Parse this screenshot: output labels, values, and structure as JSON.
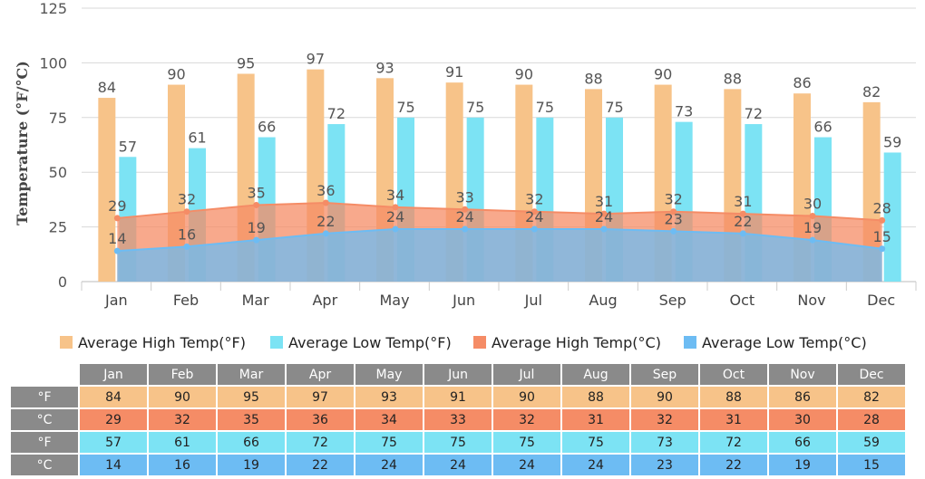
{
  "chart_data": {
    "type": "bar",
    "ylabel": "Temperature (°F/°C)",
    "ylim": [
      0,
      125
    ],
    "yticks": [
      0,
      25,
      50,
      75,
      100,
      125
    ],
    "grid": true,
    "legend_position": "bottom",
    "categories": [
      "Jan",
      "Feb",
      "Mar",
      "Apr",
      "May",
      "Jun",
      "Jul",
      "Aug",
      "Sep",
      "Oct",
      "Nov",
      "Dec"
    ],
    "series": [
      {
        "name": "Average High Temp(°F)",
        "kind": "bar",
        "color": "#f7c389",
        "values": [
          84,
          90,
          95,
          97,
          93,
          91,
          90,
          88,
          90,
          88,
          86,
          82
        ]
      },
      {
        "name": "Average Low Temp(°F)",
        "kind": "bar",
        "color": "#7ce3f4",
        "values": [
          57,
          61,
          66,
          72,
          75,
          75,
          75,
          75,
          73,
          72,
          66,
          59
        ]
      },
      {
        "name": "Average High Temp(°C)",
        "kind": "area",
        "color": "#f58c66",
        "values": [
          29,
          32,
          35,
          36,
          34,
          33,
          32,
          31,
          32,
          31,
          30,
          28
        ]
      },
      {
        "name": "Average Low Temp(°C)",
        "kind": "area",
        "color": "#6dbcf3",
        "values": [
          14,
          16,
          19,
          22,
          24,
          24,
          24,
          24,
          23,
          22,
          19,
          15
        ]
      }
    ]
  },
  "table": {
    "months": [
      "Jan",
      "Feb",
      "Mar",
      "Apr",
      "May",
      "Jun",
      "Jul",
      "Aug",
      "Sep",
      "Oct",
      "Nov",
      "Dec"
    ],
    "rows": [
      {
        "unit": "°F",
        "values": [
          "84",
          "90",
          "95",
          "97",
          "93",
          "91",
          "90",
          "88",
          "90",
          "88",
          "86",
          "82"
        ]
      },
      {
        "unit": "°C",
        "values": [
          "29",
          "32",
          "35",
          "36",
          "34",
          "33",
          "32",
          "31",
          "32",
          "31",
          "30",
          "28"
        ]
      },
      {
        "unit": "°F",
        "values": [
          "57",
          "61",
          "66",
          "72",
          "75",
          "75",
          "75",
          "75",
          "73",
          "72",
          "66",
          "59"
        ]
      },
      {
        "unit": "°C",
        "values": [
          "14",
          "16",
          "19",
          "22",
          "24",
          "24",
          "24",
          "24",
          "23",
          "22",
          "19",
          "15"
        ]
      }
    ]
  }
}
